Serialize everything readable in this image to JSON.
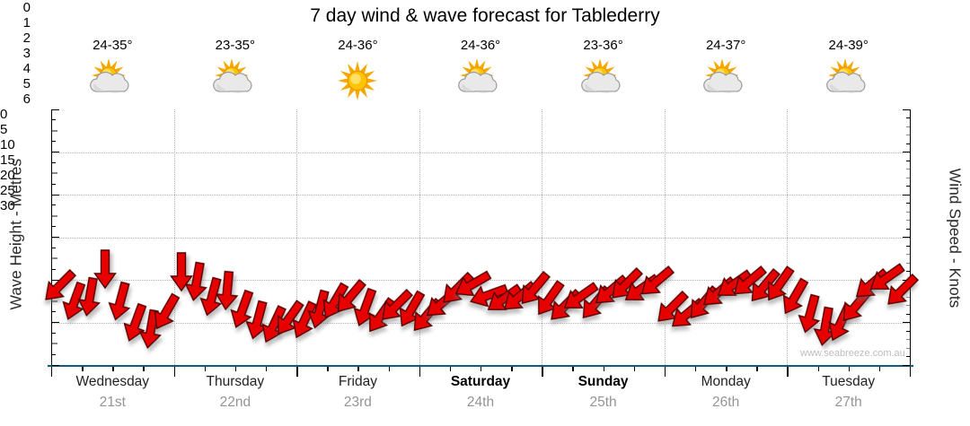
{
  "title": "7 day wind & wave forecast for Tablederry",
  "watermark": "www.seabreeze.com.au",
  "axes": {
    "left": {
      "label": "Wave Height - Metres",
      "ticks": [
        0,
        1,
        2,
        3,
        4,
        5,
        6
      ]
    },
    "right": {
      "label": "Wind Speed - Knots",
      "ticks": [
        0,
        5,
        10,
        15,
        20,
        25,
        30
      ]
    }
  },
  "days": [
    {
      "name": "Wednesday",
      "date": "21st",
      "temp": "24-35°",
      "icon": "partly-cloudy-icon",
      "weekend": false
    },
    {
      "name": "Thursday",
      "date": "22nd",
      "temp": "23-35°",
      "icon": "partly-cloudy-icon",
      "weekend": false
    },
    {
      "name": "Friday",
      "date": "23rd",
      "temp": "24-36°",
      "icon": "sunny-icon",
      "weekend": false
    },
    {
      "name": "Saturday",
      "date": "24th",
      "temp": "24-36°",
      "icon": "partly-cloudy-icon",
      "weekend": true
    },
    {
      "name": "Sunday",
      "date": "25th",
      "temp": "23-36°",
      "icon": "partly-cloudy-icon",
      "weekend": true
    },
    {
      "name": "Monday",
      "date": "26th",
      "temp": "24-37°",
      "icon": "partly-cloudy-icon",
      "weekend": false
    },
    {
      "name": "Tuesday",
      "date": "27th",
      "temp": "24-39°",
      "icon": "partly-cloudy-icon",
      "weekend": false
    }
  ],
  "chart_data": {
    "type": "scatter",
    "title": "7 day wind & wave forecast for Tablederry",
    "marker": "red wind-direction arrow",
    "left_axis": {
      "label": "Wave Height - Metres",
      "range": [
        0,
        6
      ],
      "major_tick": 1,
      "minor_tick": 0.25
    },
    "right_axis": {
      "label": "Wind Speed - Knots",
      "range": [
        0,
        30
      ],
      "major_tick": 5,
      "minor_tick": 1
    },
    "x_axis": {
      "categories": [
        "Wednesday 21st",
        "Thursday 22nd",
        "Friday 23rd",
        "Saturday 24th",
        "Sunday 25th",
        "Monday 26th",
        "Tuesday 27th"
      ],
      "points_per_day": 8,
      "interval_hours": 3
    },
    "grid": {
      "h_lines_at_metres": [
        1,
        2,
        3,
        4,
        5
      ],
      "v_lines": "day-boundaries",
      "style": "dotted"
    },
    "dir_semantics": "degrees clockwise from pointing straight down",
    "knots_per_metre_on_shared_plot": 5,
    "series": [
      {
        "name": "Wednesday",
        "points": [
          {
            "h": 1.85,
            "dir": 45
          },
          {
            "h": 1.5,
            "dir": 20
          },
          {
            "h": 1.6,
            "dir": 10
          },
          {
            "h": 2.25,
            "dir": 0
          },
          {
            "h": 1.5,
            "dir": 15
          },
          {
            "h": 1.0,
            "dir": 20
          },
          {
            "h": 0.85,
            "dir": 10
          },
          {
            "h": 1.25,
            "dir": 30
          }
        ]
      },
      {
        "name": "Thursday",
        "points": [
          {
            "h": 2.2,
            "dir": 0
          },
          {
            "h": 1.95,
            "dir": 10
          },
          {
            "h": 1.6,
            "dir": 15
          },
          {
            "h": 1.75,
            "dir": 5
          },
          {
            "h": 1.3,
            "dir": 20
          },
          {
            "h": 1.05,
            "dir": 15
          },
          {
            "h": 0.95,
            "dir": 25
          },
          {
            "h": 1.1,
            "dir": 35
          }
        ]
      },
      {
        "name": "Friday",
        "points": [
          {
            "h": 1.05,
            "dir": 25
          },
          {
            "h": 1.3,
            "dir": 15
          },
          {
            "h": 1.5,
            "dir": 30
          },
          {
            "h": 1.6,
            "dir": 40
          },
          {
            "h": 1.35,
            "dir": 20
          },
          {
            "h": 1.15,
            "dir": 35
          },
          {
            "h": 1.4,
            "dir": 45
          },
          {
            "h": 1.3,
            "dir": 30
          }
        ]
      },
      {
        "name": "Saturday",
        "points": [
          {
            "h": 1.15,
            "dir": 40
          },
          {
            "h": 1.45,
            "dir": 50
          },
          {
            "h": 1.8,
            "dir": 45
          },
          {
            "h": 1.9,
            "dir": 60
          },
          {
            "h": 1.65,
            "dir": 70
          },
          {
            "h": 1.55,
            "dir": 55
          },
          {
            "h": 1.6,
            "dir": 50
          },
          {
            "h": 1.8,
            "dir": 40
          }
        ]
      },
      {
        "name": "Sunday",
        "points": [
          {
            "h": 1.55,
            "dir": 35
          },
          {
            "h": 1.4,
            "dir": 45
          },
          {
            "h": 1.6,
            "dir": 55
          },
          {
            "h": 1.45,
            "dir": 40
          },
          {
            "h": 1.75,
            "dir": 50
          },
          {
            "h": 1.9,
            "dir": 45
          },
          {
            "h": 1.8,
            "dir": 55
          },
          {
            "h": 1.95,
            "dir": 50
          }
        ]
      },
      {
        "name": "Monday",
        "points": [
          {
            "h": 1.35,
            "dir": 45
          },
          {
            "h": 1.2,
            "dir": 50
          },
          {
            "h": 1.45,
            "dir": 40
          },
          {
            "h": 1.7,
            "dir": 50
          },
          {
            "h": 1.9,
            "dir": 55
          },
          {
            "h": 1.95,
            "dir": 50
          },
          {
            "h": 1.85,
            "dir": 40
          },
          {
            "h": 1.9,
            "dir": 35
          }
        ]
      },
      {
        "name": "Tuesday",
        "points": [
          {
            "h": 1.6,
            "dir": 30
          },
          {
            "h": 1.2,
            "dir": 15
          },
          {
            "h": 0.9,
            "dir": 10
          },
          {
            "h": 1.0,
            "dir": 25
          },
          {
            "h": 1.4,
            "dir": 40
          },
          {
            "h": 1.9,
            "dir": 50
          },
          {
            "h": 2.05,
            "dir": 55
          },
          {
            "h": 1.75,
            "dir": 45
          }
        ]
      }
    ]
  },
  "colors": {
    "arrow_fill": "#e60000",
    "arrow_outline": "#550000",
    "bottom_axis": "#15587f",
    "grid": "#b3b3b3",
    "date_text": "#949494",
    "watermark": "#bdbdbd",
    "sun": "#f6a800",
    "sun_core": "#ffc400",
    "cloud": "#e9e9e9"
  }
}
